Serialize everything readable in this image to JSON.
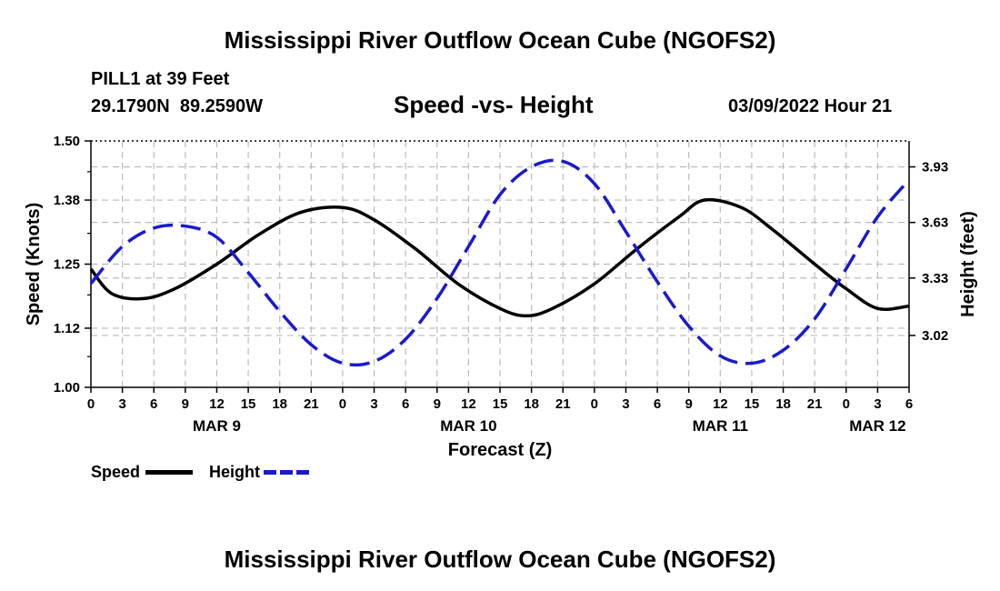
{
  "header": {
    "title": "Mississippi River Outflow Ocean Cube (NGOFS2)",
    "station": "PILL1 at 39 Feet",
    "coords": "29.1790N  89.2590W",
    "subtitle": "Speed -vs- Height",
    "datetime": "03/09/2022 Hour 21"
  },
  "footer": {
    "title": "Mississippi River Outflow Ocean Cube (NGOFS2)"
  },
  "legend": {
    "speed_label": "Speed",
    "height_label": "Height"
  },
  "colors": {
    "speed": "#000000",
    "height": "#1a1acc",
    "grid": "#bbbbbb"
  },
  "chart_data": {
    "type": "line",
    "title": "Speed -vs- Height",
    "xlabel": "Forecast (Z)",
    "ylabel": "Speed (Knots)",
    "y2label": "Height (feet)",
    "xlim_hours": [
      0,
      78
    ],
    "ylim": [
      1.0,
      1.5
    ],
    "y2lim": [
      2.74,
      4.07
    ],
    "yticks": [
      "1.00",
      "1.12",
      "1.25",
      "1.38",
      "1.50"
    ],
    "y2ticks": [
      "3.02",
      "3.33",
      "3.63",
      "3.93"
    ],
    "xtick_labels": [
      "0",
      "3",
      "6",
      "9",
      "12",
      "15",
      "18",
      "21",
      "0",
      "3",
      "6",
      "9",
      "12",
      "15",
      "18",
      "21",
      "0",
      "3",
      "6",
      "9",
      "12",
      "15",
      "18",
      "21",
      "0",
      "3",
      "6"
    ],
    "day_labels": [
      {
        "label": "MAR 9",
        "hour": 12
      },
      {
        "label": "MAR 10",
        "hour": 36
      },
      {
        "label": "MAR 11",
        "hour": 60
      },
      {
        "label": "MAR 12",
        "hour": 75
      }
    ],
    "series": [
      {
        "name": "Speed",
        "axis": "left",
        "style": "solid",
        "x": [
          0,
          2,
          5,
          8,
          12,
          16,
          20,
          24,
          27,
          31,
          35,
          39,
          41.5,
          44,
          48,
          52,
          56,
          58.5,
          62,
          65,
          69,
          72,
          75,
          78
        ],
        "values": [
          1.24,
          1.19,
          1.18,
          1.2,
          1.25,
          1.31,
          1.355,
          1.365,
          1.34,
          1.28,
          1.21,
          1.16,
          1.145,
          1.16,
          1.21,
          1.28,
          1.345,
          1.38,
          1.365,
          1.32,
          1.25,
          1.2,
          1.16,
          1.165
        ]
      },
      {
        "name": "Height",
        "axis": "right",
        "style": "dashed",
        "x": [
          0,
          3,
          6,
          9,
          12,
          15,
          18,
          21,
          24,
          27,
          30,
          33,
          36,
          39,
          42,
          45,
          48,
          51,
          54,
          57,
          60,
          63,
          66,
          69,
          72,
          75,
          78
        ],
        "values": [
          3.3,
          3.5,
          3.6,
          3.61,
          3.55,
          3.36,
          3.15,
          2.97,
          2.87,
          2.88,
          3.0,
          3.22,
          3.5,
          3.78,
          3.93,
          3.96,
          3.84,
          3.58,
          3.31,
          3.07,
          2.91,
          2.87,
          2.94,
          3.11,
          3.38,
          3.66,
          3.86
        ]
      }
    ]
  }
}
